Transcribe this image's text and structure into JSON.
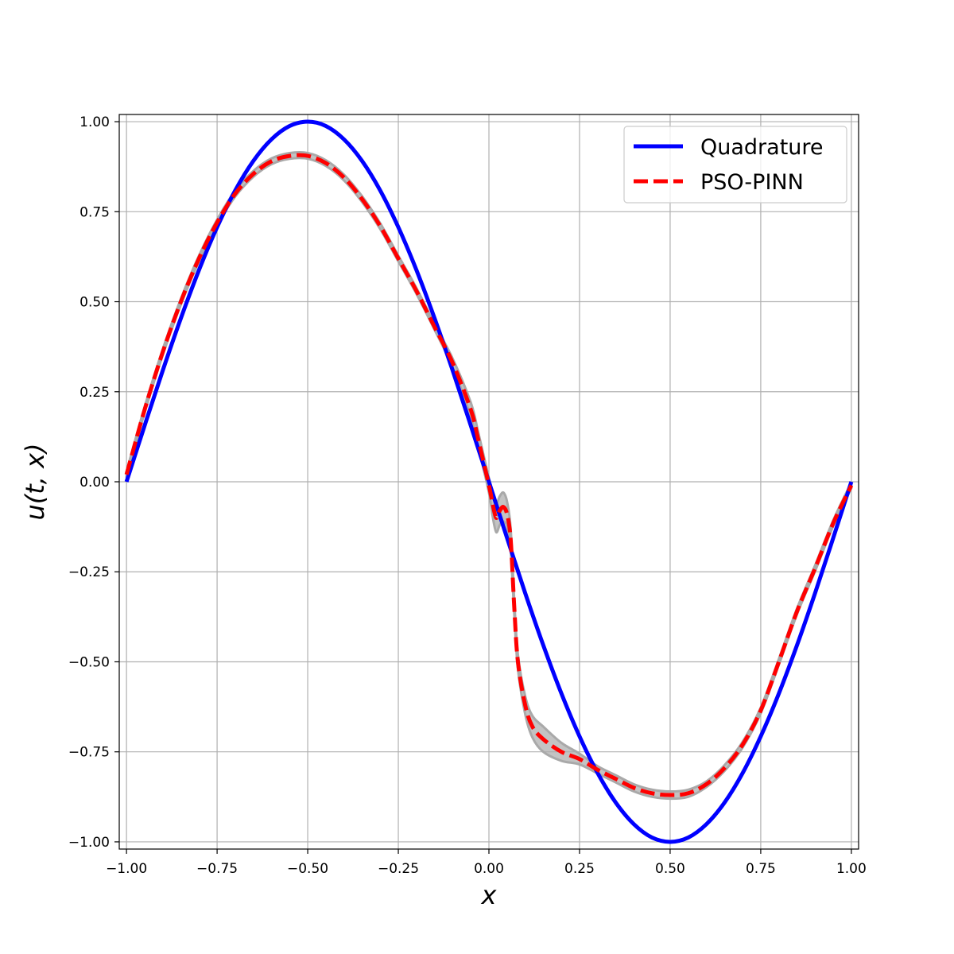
{
  "chart_data": {
    "type": "line",
    "title": "",
    "xlabel": "x",
    "ylabel": "u(t, x)",
    "xlim": [
      -1.02,
      1.02
    ],
    "ylim": [
      -1.02,
      1.02
    ],
    "xticks": [
      -1.0,
      -0.75,
      -0.5,
      -0.25,
      0.0,
      0.25,
      0.5,
      0.75,
      1.0
    ],
    "xtick_labels": [
      "−1.00",
      "−0.75",
      "−0.50",
      "−0.25",
      "0.00",
      "0.25",
      "0.50",
      "0.75",
      "1.00"
    ],
    "yticks": [
      1.0,
      0.75,
      0.5,
      0.25,
      0.0,
      -0.25,
      -0.5,
      -0.75,
      -1.0
    ],
    "ytick_labels": [
      "1.00",
      "0.75",
      "0.50",
      "0.25",
      "0.00",
      "−0.25",
      "−0.50",
      "−0.75",
      "−1.00"
    ],
    "grid": true,
    "legend_position": "top-right",
    "series": [
      {
        "name": "Quadrature",
        "color": "#0000ff",
        "style": "solid",
        "x": [
          -1.0,
          -0.95,
          -0.9,
          -0.85,
          -0.8,
          -0.75,
          -0.7,
          -0.65,
          -0.6,
          -0.55,
          -0.5,
          -0.45,
          -0.4,
          -0.35,
          -0.3,
          -0.25,
          -0.2,
          -0.15,
          -0.1,
          -0.05,
          0.0,
          0.05,
          0.1,
          0.15,
          0.2,
          0.25,
          0.3,
          0.35,
          0.4,
          0.45,
          0.5,
          0.55,
          0.6,
          0.65,
          0.7,
          0.75,
          0.8,
          0.85,
          0.9,
          0.95,
          1.0
        ],
        "y": [
          0.0,
          0.156,
          0.309,
          0.454,
          0.588,
          0.707,
          0.809,
          0.891,
          0.951,
          0.988,
          1.0,
          0.988,
          0.951,
          0.891,
          0.809,
          0.707,
          0.588,
          0.454,
          0.309,
          0.156,
          0.0,
          -0.156,
          -0.309,
          -0.454,
          -0.588,
          -0.707,
          -0.809,
          -0.891,
          -0.951,
          -0.988,
          -1.0,
          -0.988,
          -0.951,
          -0.891,
          -0.809,
          -0.707,
          -0.588,
          -0.454,
          -0.309,
          -0.156,
          0.0
        ]
      },
      {
        "name": "PSO-PINN",
        "color": "#ff0000",
        "style": "dashed",
        "x": [
          -1.0,
          -0.95,
          -0.9,
          -0.85,
          -0.8,
          -0.75,
          -0.7,
          -0.65,
          -0.6,
          -0.55,
          -0.5,
          -0.45,
          -0.4,
          -0.35,
          -0.3,
          -0.25,
          -0.2,
          -0.15,
          -0.1,
          -0.05,
          -0.03,
          0.0,
          0.01,
          0.02,
          0.03,
          0.04,
          0.05,
          0.06,
          0.07,
          0.08,
          0.1,
          0.12,
          0.15,
          0.2,
          0.25,
          0.3,
          0.35,
          0.4,
          0.45,
          0.5,
          0.55,
          0.6,
          0.65,
          0.7,
          0.75,
          0.8,
          0.85,
          0.9,
          0.95,
          1.0
        ],
        "y": [
          0.02,
          0.2,
          0.36,
          0.5,
          0.62,
          0.72,
          0.8,
          0.855,
          0.89,
          0.905,
          0.905,
          0.885,
          0.845,
          0.785,
          0.71,
          0.62,
          0.53,
          0.43,
          0.33,
          0.2,
          0.12,
          -0.01,
          -0.06,
          -0.1,
          -0.08,
          -0.07,
          -0.09,
          -0.16,
          -0.35,
          -0.5,
          -0.62,
          -0.68,
          -0.715,
          -0.75,
          -0.77,
          -0.8,
          -0.825,
          -0.85,
          -0.865,
          -0.87,
          -0.865,
          -0.84,
          -0.795,
          -0.73,
          -0.635,
          -0.5,
          -0.36,
          -0.24,
          -0.115,
          -0.01
        ]
      }
    ],
    "uncertainty_band": {
      "color": "#a9a9a9",
      "half_width": [
        0.008,
        0.008,
        0.008,
        0.008,
        0.008,
        0.008,
        0.008,
        0.008,
        0.008,
        0.008,
        0.008,
        0.008,
        0.008,
        0.008,
        0.008,
        0.008,
        0.008,
        0.008,
        0.012,
        0.02,
        0.02,
        0.02,
        0.035,
        0.04,
        0.04,
        0.04,
        0.035,
        0.03,
        0.02,
        0.02,
        0.025,
        0.03,
        0.035,
        0.025,
        0.015,
        0.01,
        0.01,
        0.01,
        0.01,
        0.01,
        0.01,
        0.008,
        0.008,
        0.008,
        0.008,
        0.008,
        0.008,
        0.008,
        0.008,
        0.008
      ]
    }
  }
}
